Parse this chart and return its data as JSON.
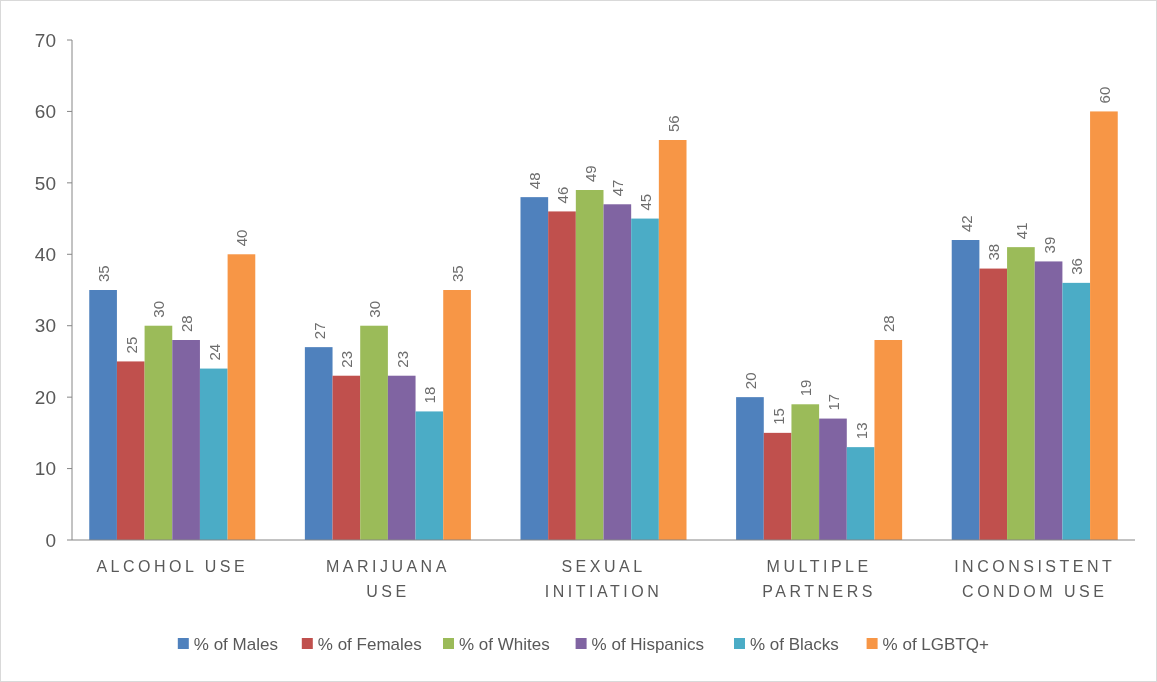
{
  "chart_data": {
    "type": "bar",
    "categories": [
      "ALCOHOL USE",
      "MARIJUANA USE",
      "SEXUAL INITIATION",
      "MULTIPLE PARTNERS",
      "INCONSISTENT CONDOM USE"
    ],
    "series": [
      {
        "name": "% of Males",
        "color": "#4f81bd",
        "values": [
          35,
          27,
          48,
          20,
          42
        ]
      },
      {
        "name": "% of Females",
        "color": "#c0504d",
        "values": [
          25,
          23,
          46,
          15,
          38
        ]
      },
      {
        "name": "% of Whites",
        "color": "#9bbb59",
        "values": [
          30,
          30,
          49,
          19,
          41
        ]
      },
      {
        "name": "% of Hispanics",
        "color": "#8064a2",
        "values": [
          28,
          23,
          47,
          17,
          39
        ]
      },
      {
        "name": "% of Blacks",
        "color": "#4bacc6",
        "values": [
          24,
          18,
          45,
          13,
          36
        ]
      },
      {
        "name": "% of LGBTQ+",
        "color": "#f79646",
        "values": [
          40,
          35,
          56,
          28,
          60
        ]
      }
    ],
    "ylim": [
      0,
      70
    ],
    "yticks": [
      0,
      10,
      20,
      30,
      40,
      50,
      60,
      70
    ],
    "grid": false,
    "legend": "bottom",
    "data_labels": true
  }
}
